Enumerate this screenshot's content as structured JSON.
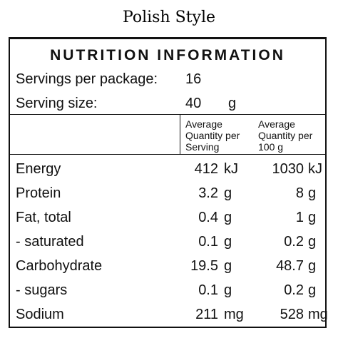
{
  "title": "Polish Style",
  "panel": {
    "header": "NUTRITION INFORMATION",
    "servings_label": "Servings per package:",
    "servings_value": "16",
    "serving_size_label": "Serving size:",
    "serving_size_value": "40",
    "serving_size_unit": "g",
    "col_serving": [
      "Average",
      "Quantity per",
      "Serving"
    ],
    "col_100g": [
      "Average",
      "Quantity per",
      "100 g"
    ],
    "rows": [
      {
        "label": "Energy",
        "serving": "412",
        "serving_unit": "kJ",
        "per100": "1030",
        "per100_unit": "kJ"
      },
      {
        "label": "Protein",
        "serving": "3.2",
        "serving_unit": "g",
        "per100": "8",
        "per100_unit": "g"
      },
      {
        "label": "Fat, total",
        "serving": "0.4",
        "serving_unit": "g",
        "per100": "1",
        "per100_unit": "g"
      },
      {
        "label": "- saturated",
        "serving": "0.1",
        "serving_unit": "g",
        "per100": "0.2",
        "per100_unit": "g"
      },
      {
        "label": "Carbohydrate",
        "serving": "19.5",
        "serving_unit": "g",
        "per100": "48.7",
        "per100_unit": "g"
      },
      {
        "label": "- sugars",
        "serving": "0.1",
        "serving_unit": "g",
        "per100": "0.2",
        "per100_unit": "g"
      },
      {
        "label": "Sodium",
        "serving": "211",
        "serving_unit": "mg",
        "per100": "528",
        "per100_unit": "mg"
      }
    ]
  }
}
